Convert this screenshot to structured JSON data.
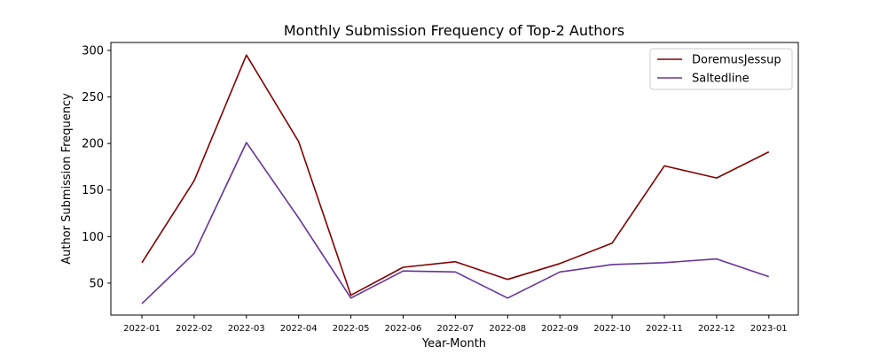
{
  "chart_data": {
    "type": "line",
    "title": "Monthly Submission Frequency of Top-2 Authors",
    "xlabel": "Year-Month",
    "ylabel": "Author Submission Frequency",
    "categories": [
      "2022-01",
      "2022-02",
      "2022-03",
      "2022-04",
      "2022-05",
      "2022-06",
      "2022-07",
      "2022-08",
      "2022-09",
      "2022-10",
      "2022-11",
      "2022-12",
      "2023-01"
    ],
    "y_ticks": [
      50,
      100,
      150,
      200,
      250,
      300
    ],
    "ylim": [
      15.7,
      308.5
    ],
    "grid": false,
    "legend_position": "top-right",
    "series": [
      {
        "name": "DoremusJessup",
        "color": "#800000",
        "values": [
          72,
          160,
          295,
          202,
          37,
          67,
          73,
          54,
          71,
          93,
          176,
          163,
          191
        ]
      },
      {
        "name": "Saltedline",
        "color": "#663399",
        "values": [
          28,
          82,
          201,
          120,
          34,
          63,
          62,
          34,
          62,
          70,
          72,
          76,
          57
        ]
      }
    ]
  }
}
